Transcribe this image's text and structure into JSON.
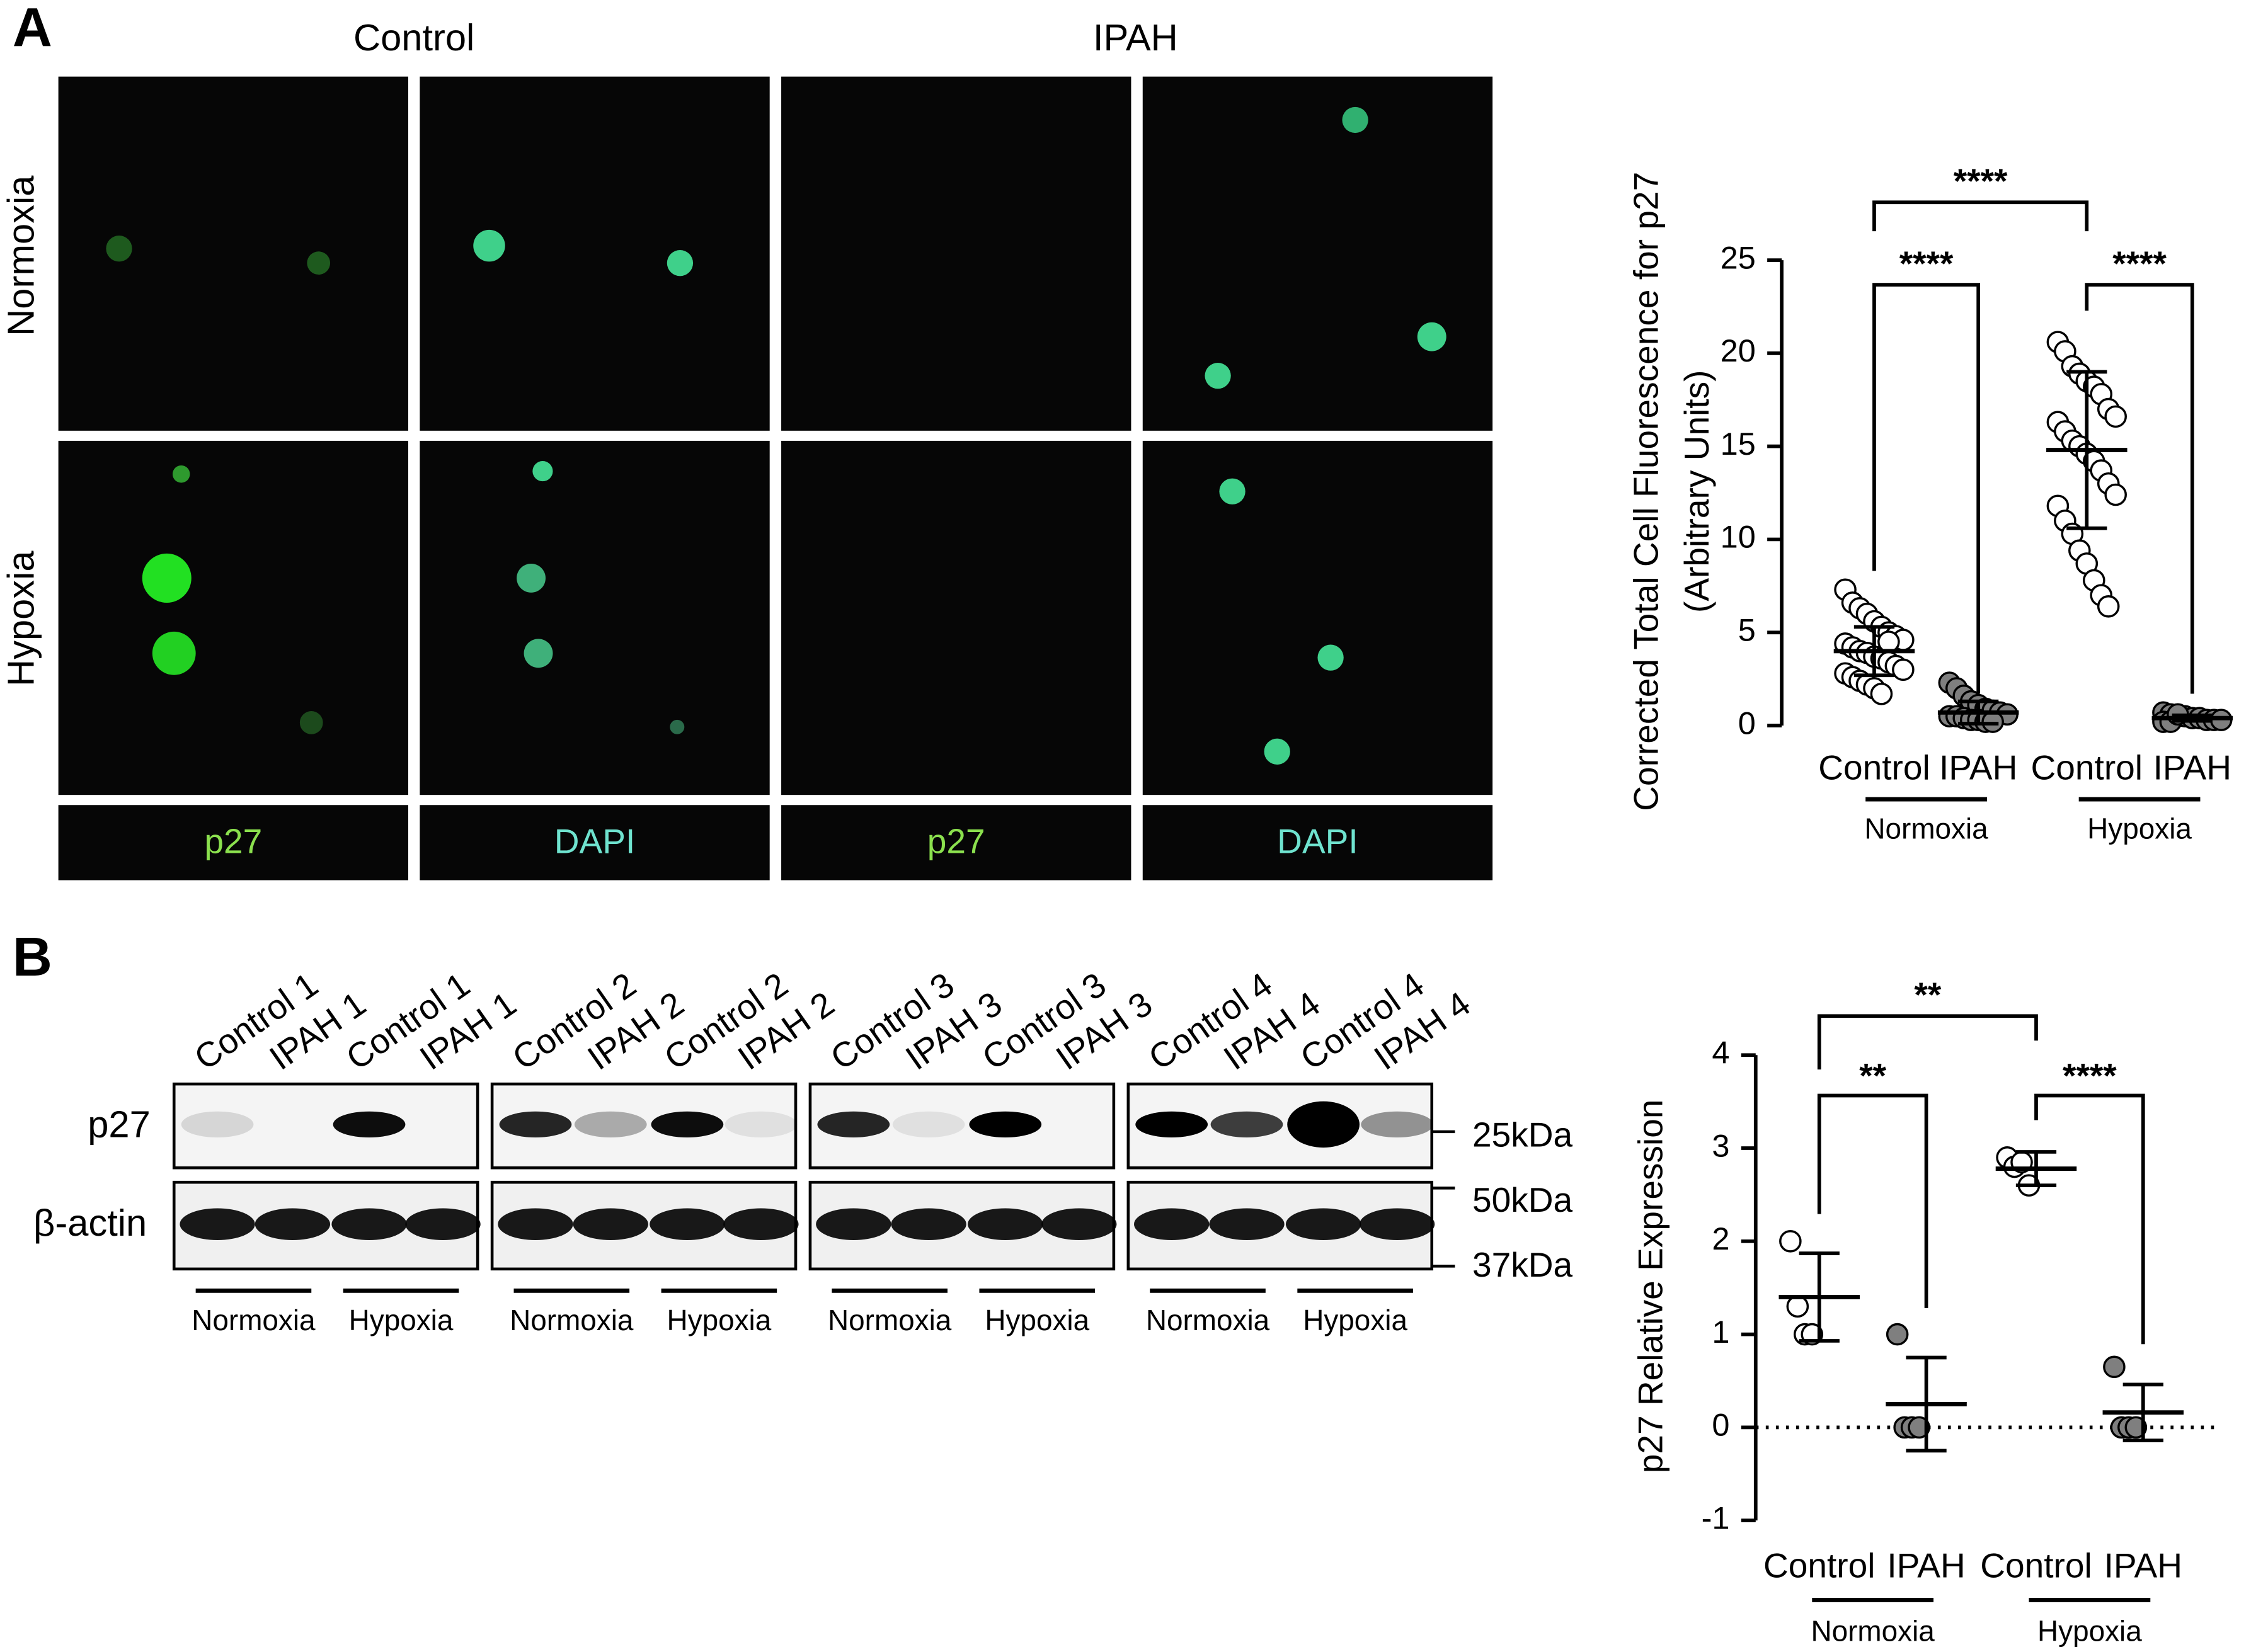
{
  "figure": {
    "panel_labels": [
      "A",
      "B"
    ],
    "columns": [
      "Control",
      "IPAH"
    ],
    "rows": [
      "Normoxia",
      "Hypoxia"
    ],
    "channels": [
      "p27",
      "DAPI",
      "p27",
      "DAPI"
    ],
    "lanes": [
      "Control 1",
      "IPAH 1",
      "Control 1",
      "IPAH 1",
      "Control 2",
      "IPAH 2",
      "Control 2",
      "IPAH 2",
      "Control 3",
      "IPAH 3",
      "Control 3",
      "IPAH 3",
      "Control 4",
      "IPAH 4",
      "Control 4",
      "IPAH 4"
    ],
    "blot_rows": [
      "p27",
      "β-actin"
    ],
    "markers": [
      "25kDa",
      "50kDa",
      "37kDa"
    ],
    "blot_groups": [
      "Normoxia",
      "Hypoxia"
    ]
  },
  "chart_data": [
    {
      "type": "dot-plot",
      "y_label": [
        "Corrected Total Cell Fluorescence for p27",
        "(Arbitrary Units)"
      ],
      "categories": [
        "Control",
        "IPAH",
        "Control",
        "IPAH"
      ],
      "group_labels": [
        "Normoxia",
        "Hypoxia"
      ],
      "colors": [
        "#ffffff",
        "#7f7f7f",
        "#ffffff",
        "#7f7f7f"
      ],
      "points": [
        [
          7.3,
          6.6,
          6.3,
          6.0,
          5.6,
          5.3,
          5.0,
          4.8,
          4.6,
          4.4,
          4.2,
          4.0,
          3.9,
          3.7,
          3.6,
          3.4,
          3.2,
          3.0,
          2.8,
          2.6,
          2.4,
          2.2,
          2.0,
          1.7,
          4.5
        ],
        [
          2.3,
          2.0,
          1.6,
          1.3,
          1.1,
          0.9,
          0.8,
          0.7,
          0.6,
          0.5,
          0.5,
          0.4,
          0.3,
          0.3,
          0.2,
          0.2
        ],
        [
          20.6,
          20.1,
          19.3,
          18.9,
          18.5,
          18.2,
          17.8,
          17.0,
          16.6,
          16.3,
          15.8,
          15.3,
          15.0,
          14.6,
          14.2,
          13.7,
          13.0,
          12.4,
          11.8,
          11.0,
          10.3,
          9.4,
          8.7,
          7.8,
          7.0,
          6.4
        ],
        [
          0.7,
          0.6,
          0.5,
          0.5,
          0.4,
          0.4,
          0.3,
          0.3,
          0.3,
          0.2,
          0.2,
          0.6
        ]
      ],
      "means": [
        4.0,
        0.7,
        14.8,
        0.4
      ],
      "sds": [
        1.3,
        0.6,
        4.2,
        0.15
      ],
      "significance": [
        "****",
        "****",
        "****"
      ],
      "ylim": [
        0,
        25
      ],
      "yticks": [
        0,
        5,
        10,
        15,
        20,
        25
      ]
    },
    {
      "type": "dot-plot",
      "y_label": [
        "p27 Relative Expression"
      ],
      "categories": [
        "Control",
        "IPAH",
        "Control",
        "IPAH"
      ],
      "group_labels": [
        "Normoxia",
        "Hypoxia"
      ],
      "colors": [
        "#ffffff",
        "#7f7f7f",
        "#ffffff",
        "#7f7f7f"
      ],
      "points": [
        [
          2.0,
          1.3,
          1.0,
          1.0
        ],
        [
          1.0,
          0,
          0,
          0
        ],
        [
          2.9,
          2.8,
          2.85,
          2.6
        ],
        [
          0.65,
          0,
          0,
          0
        ]
      ],
      "means": [
        1.4,
        0.25,
        2.78,
        0.16
      ],
      "sds": [
        0.47,
        0.5,
        0.18,
        0.3
      ],
      "significance": [
        "**",
        "**",
        "****"
      ],
      "refline": 0,
      "ylim": [
        -1,
        4
      ],
      "yticks": [
        -1,
        0,
        1,
        2,
        3,
        4
      ]
    }
  ]
}
